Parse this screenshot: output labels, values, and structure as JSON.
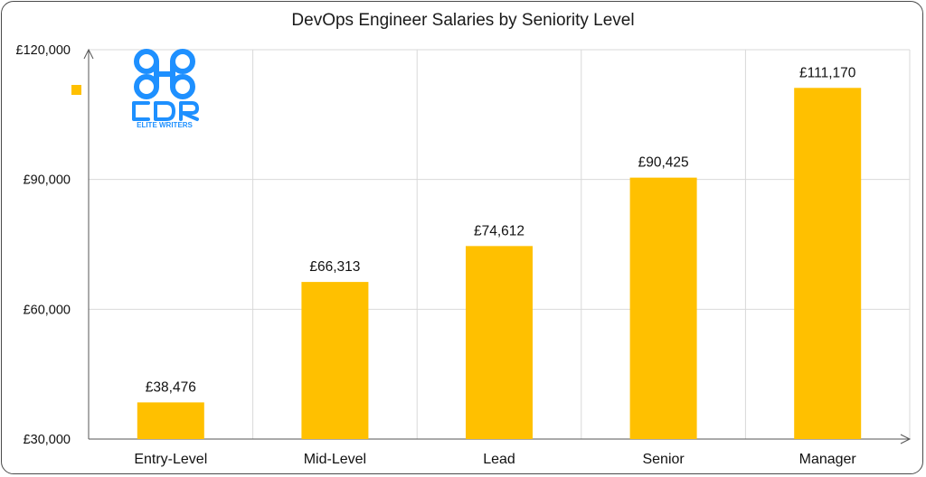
{
  "chart_data": {
    "type": "bar",
    "title": "DevOps Engineer Salaries by Seniority Level",
    "categories": [
      "Entry-Level",
      "Mid-Level",
      "Lead",
      "Senior",
      "Manager"
    ],
    "values": [
      38476,
      66313,
      74612,
      90425,
      111170
    ],
    "value_labels": [
      "£38,476",
      "£66,313",
      "£74,612",
      "£90,425",
      "£111,170"
    ],
    "ylim": [
      30000,
      120000
    ],
    "yticks": [
      30000,
      60000,
      90000,
      120000
    ],
    "ytick_labels": [
      "£30,000",
      "£60,000",
      "£90,000",
      "£120,000"
    ],
    "grid": true,
    "bar_color": "#FFC000",
    "legend_placement": "top-left"
  },
  "logo": {
    "text": "ELITE WRITERS",
    "monogram": "CDR",
    "color": "#1E90FF"
  }
}
